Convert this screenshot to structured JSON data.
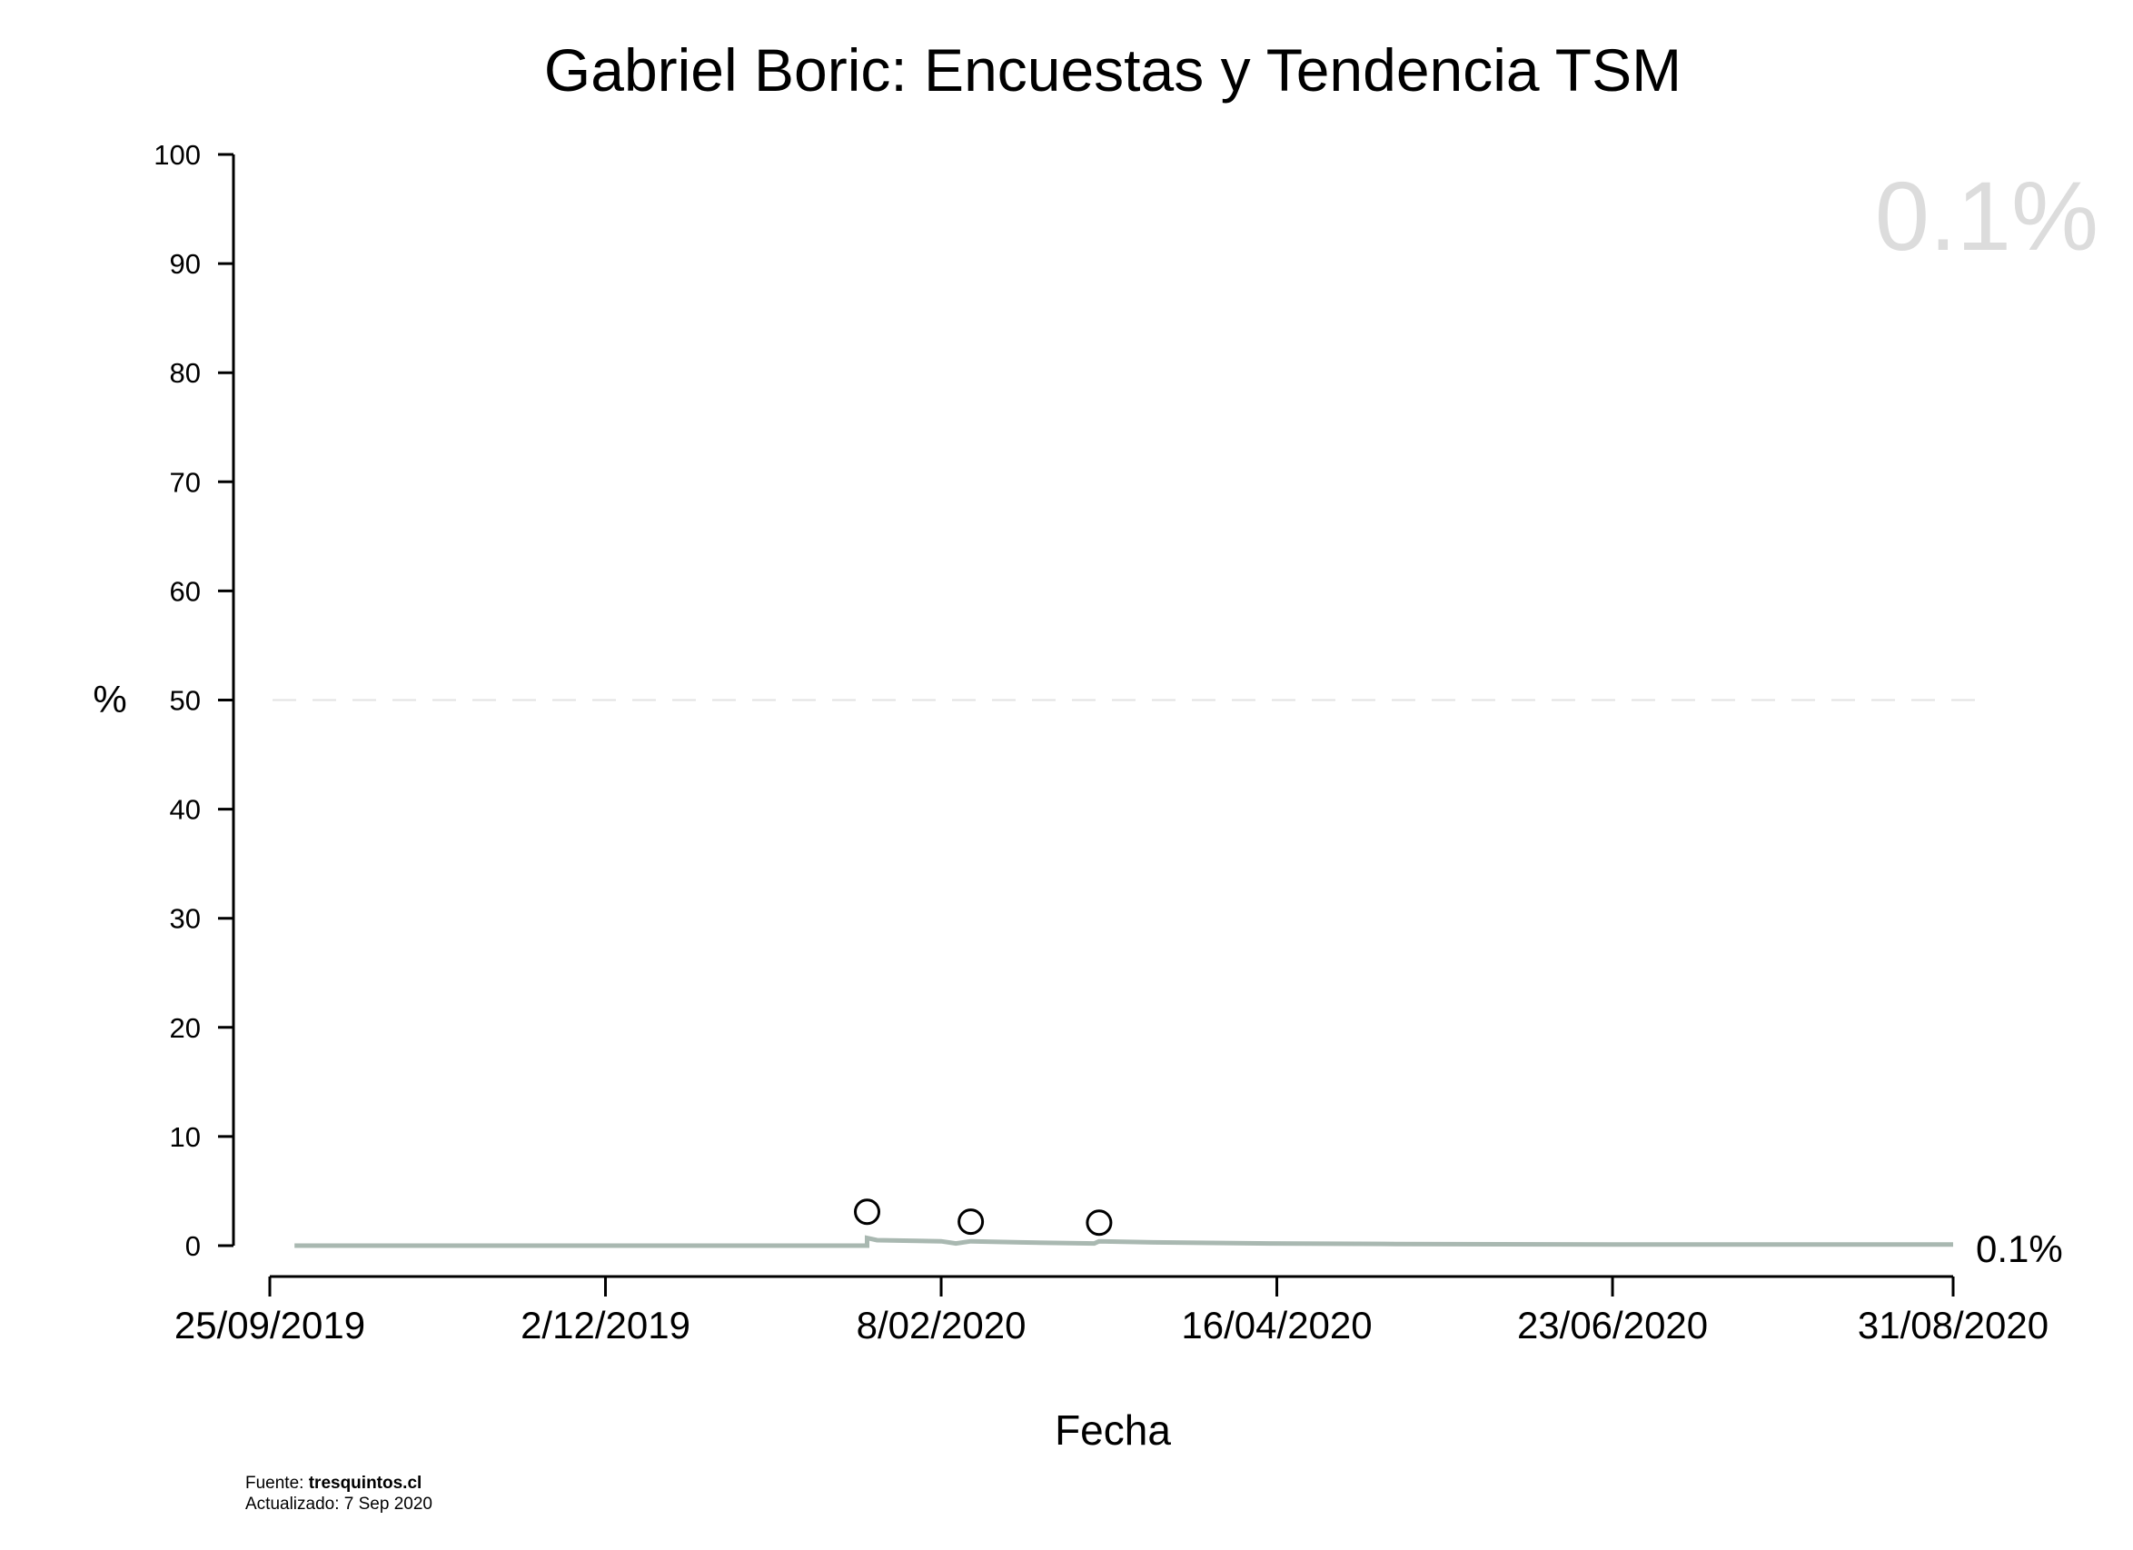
{
  "chart_data": {
    "type": "line",
    "title": "Gabriel Boric: Encuestas y Tendencia TSM",
    "xlabel": "Fecha",
    "ylabel": "%",
    "ylim": [
      0,
      100
    ],
    "yticks": [
      0,
      10,
      20,
      30,
      40,
      50,
      60,
      70,
      80,
      90,
      100
    ],
    "xlim": [
      "2019-09-25",
      "2020-08-31"
    ],
    "xticks": [
      {
        "date": "2019-09-25",
        "label": "25/09/2019"
      },
      {
        "date": "2019-12-02",
        "label": "2/12/2019"
      },
      {
        "date": "2020-02-08",
        "label": "8/02/2020"
      },
      {
        "date": "2020-04-16",
        "label": "16/04/2020"
      },
      {
        "date": "2020-06-23",
        "label": "23/06/2020"
      },
      {
        "date": "2020-08-31",
        "label": "31/08/2020"
      }
    ],
    "reference_line": {
      "y": 50,
      "style": "dashed"
    },
    "grid": false,
    "series": [
      {
        "type": "step-line",
        "color": "#a9b8b1",
        "points": [
          {
            "x": "2019-09-30",
            "y": 0.0
          },
          {
            "x": "2020-01-24",
            "y": 0.0
          },
          {
            "x": "2020-01-24",
            "y": 0.7
          },
          {
            "x": "2020-01-26",
            "y": 0.5
          },
          {
            "x": "2020-02-08",
            "y": 0.4
          },
          {
            "x": "2020-02-11",
            "y": 0.2
          },
          {
            "x": "2020-02-14",
            "y": 0.4
          },
          {
            "x": "2020-02-24",
            "y": 0.3
          },
          {
            "x": "2020-03-10",
            "y": 0.2
          },
          {
            "x": "2020-03-11",
            "y": 0.4
          },
          {
            "x": "2020-03-22",
            "y": 0.3
          },
          {
            "x": "2020-04-15",
            "y": 0.2
          },
          {
            "x": "2020-05-10",
            "y": 0.15
          },
          {
            "x": "2020-06-23",
            "y": 0.1
          },
          {
            "x": "2020-08-31",
            "y": 0.1
          }
        ]
      },
      {
        "type": "scatter",
        "marker": "open-circle",
        "points": [
          {
            "x": "2020-01-24",
            "y": 3.1
          },
          {
            "x": "2020-02-14",
            "y": 2.2
          },
          {
            "x": "2020-03-11",
            "y": 2.1
          }
        ]
      }
    ],
    "end_label": "0.1%",
    "watermark": {
      "text": "0.1%",
      "color": "#dcdcdc",
      "position": "top-right"
    }
  },
  "credits": {
    "source_prefix": "Fuente: ",
    "source": "tresquintos.cl",
    "updated": "Actualizado: 7 Sep 2020"
  }
}
